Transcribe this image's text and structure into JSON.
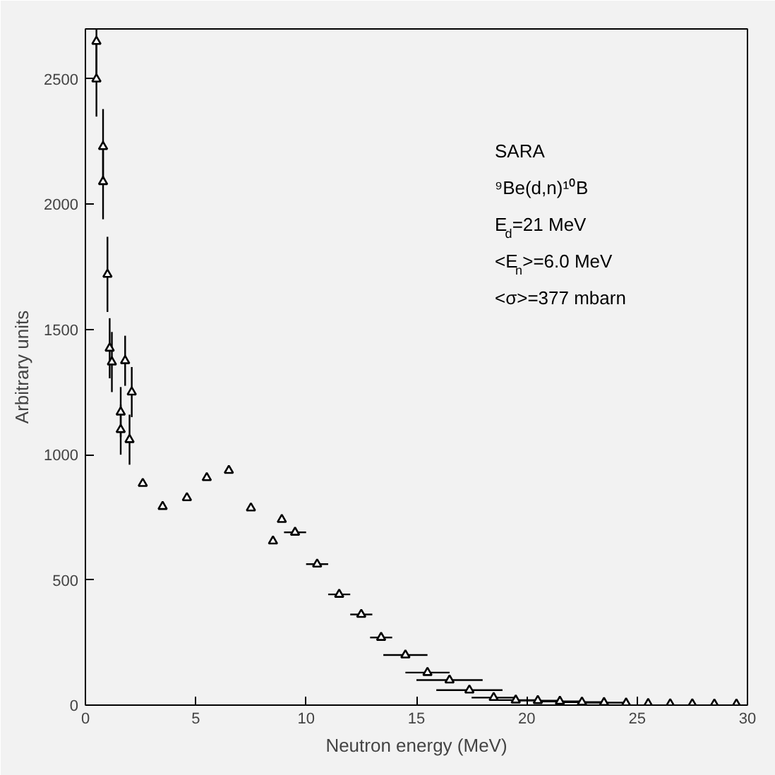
{
  "chart_data": {
    "type": "scatter",
    "xlabel": "Neutron energy (MeV)",
    "ylabel": "Arbitrary units",
    "annotations": [
      "SARA",
      "⁹Be(d,n)¹⁰B",
      "E$_{d}$=21 MeV",
      "<E$_{n}$>=6.0 MeV",
      "<σ>=377 mbarn"
    ],
    "x": [
      0.5,
      0.5,
      0.8,
      0.8,
      1.0,
      1.1,
      1.2,
      1.6,
      1.8,
      1.6,
      2.0,
      2.1,
      2.6,
      3.5,
      4.6,
      5.5,
      6.5,
      7.5,
      8.5,
      8.9,
      9.5,
      10.5,
      11.5,
      12.5,
      13.4,
      14.5,
      15.5,
      16.5,
      17.4,
      18.5,
      19.5,
      20.5,
      21.5,
      22.5,
      23.5,
      24.5,
      25.5,
      26.5,
      27.5,
      28.5,
      29.5
    ],
    "values": [
      2650,
      2500,
      2230,
      2090,
      1720,
      1425,
      1370,
      1170,
      1375,
      1100,
      1060,
      1250,
      885,
      793,
      828,
      908,
      937,
      787,
      655,
      741,
      690,
      563,
      442,
      362,
      270,
      200,
      130,
      100,
      60,
      30,
      20,
      18,
      15,
      12,
      10,
      8,
      6,
      5,
      5,
      4,
      4
    ],
    "errors": [
      150,
      150,
      150,
      150,
      150,
      120,
      120,
      100,
      100,
      100,
      100,
      100,
      null,
      null,
      null,
      null,
      null,
      null,
      null,
      null,
      null,
      null,
      null,
      null,
      null,
      null,
      null,
      null,
      null,
      null,
      null,
      null,
      null,
      null,
      null,
      null,
      null,
      null,
      null,
      null,
      null
    ],
    "xerrors": [
      null,
      null,
      null,
      null,
      null,
      null,
      null,
      null,
      null,
      null,
      null,
      null,
      null,
      null,
      null,
      null,
      null,
      null,
      null,
      null,
      0.5,
      0.5,
      0.5,
      0.5,
      0.5,
      1,
      1,
      1.5,
      1.5,
      1,
      1,
      1,
      1,
      1,
      1,
      null,
      null,
      null,
      null,
      null,
      null
    ],
    "xlim": [
      0,
      30
    ],
    "ylim": [
      0,
      2700
    ],
    "xticks": [
      0,
      5,
      10,
      15,
      20,
      25,
      30
    ],
    "yticks": [
      0,
      500,
      1000,
      1500,
      2000,
      2500
    ],
    "marker": "triangle",
    "grid": false
  }
}
